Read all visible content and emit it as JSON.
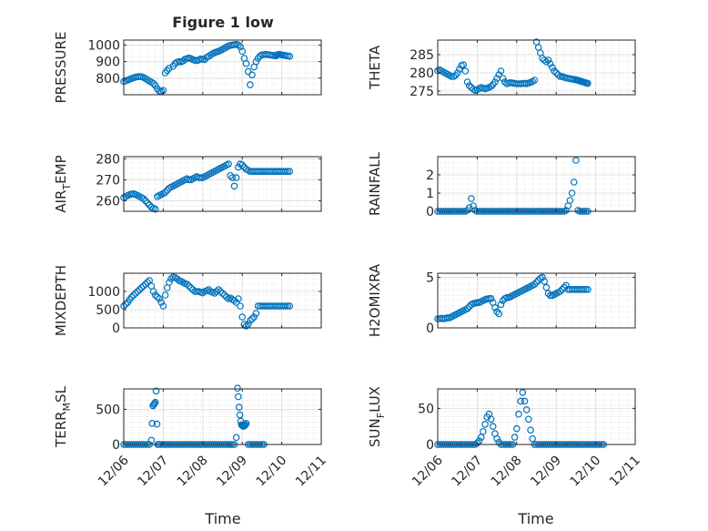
{
  "figure": {
    "title": "Figure 1 low",
    "xlabel": "Time",
    "x_tick_labels": [
      "12/06",
      "12/07",
      "12/08",
      "12/09",
      "12/10",
      "12/11"
    ],
    "x_ticks": [
      0,
      1,
      2,
      3,
      4,
      5
    ],
    "marker_color": "#0072BD",
    "grid": true,
    "minor_grid": true
  },
  "chart_data": [
    {
      "type": "scatter",
      "ylabel": "PRESSURE",
      "xlim": [
        0,
        5
      ],
      "ylim": [
        700,
        1030
      ],
      "yticks": [
        800,
        900,
        1000
      ],
      "x": [
        0,
        0.05,
        0.1,
        0.15,
        0.2,
        0.25,
        0.3,
        0.35,
        0.4,
        0.45,
        0.5,
        0.55,
        0.6,
        0.65,
        0.7,
        0.75,
        0.8,
        0.85,
        0.9,
        0.95,
        1.0,
        1.05,
        1.1,
        1.15,
        1.25,
        1.3,
        1.35,
        1.4,
        1.45,
        1.5,
        1.55,
        1.6,
        1.65,
        1.7,
        1.75,
        1.8,
        1.85,
        1.9,
        1.95,
        2.0,
        2.05,
        2.1,
        2.15,
        2.2,
        2.25,
        2.3,
        2.35,
        2.4,
        2.45,
        2.5,
        2.55,
        2.6,
        2.65,
        2.7,
        2.75,
        2.8,
        2.85,
        2.9,
        2.95,
        3.0,
        3.05,
        3.1,
        3.15,
        3.2,
        3.25,
        3.3,
        3.35,
        3.4,
        3.45,
        3.5,
        3.55,
        3.6,
        3.65,
        3.7,
        3.75,
        3.8,
        3.85,
        3.88,
        3.91,
        3.94,
        3.97,
        4.0,
        4.05,
        4.1,
        4.15,
        4.2
      ],
      "y": [
        780,
        784,
        788,
        793,
        798,
        802,
        806,
        808,
        810,
        808,
        804,
        798,
        790,
        782,
        776,
        768,
        756,
        736,
        722,
        720,
        726,
        832,
        846,
        860,
        872,
        888,
        896,
        900,
        898,
        904,
        914,
        918,
        922,
        918,
        912,
        908,
        906,
        910,
        916,
        914,
        912,
        926,
        932,
        940,
        948,
        954,
        958,
        962,
        968,
        974,
        980,
        988,
        994,
        998,
        1000,
        1002,
        1004,
        1000,
        990,
        962,
        920,
        888,
        840,
        760,
        820,
        868,
        900,
        920,
        934,
        940,
        942,
        944,
        942,
        940,
        938,
        936,
        934,
        940,
        942,
        944,
        942,
        940,
        938,
        936,
        934,
        932
      ]
    },
    {
      "type": "scatter",
      "ylabel": "THETA",
      "xlim": [
        0,
        5
      ],
      "ylim": [
        274,
        289
      ],
      "yticks": [
        275,
        280,
        285
      ],
      "x": [
        0,
        0.05,
        0.1,
        0.15,
        0.2,
        0.25,
        0.3,
        0.35,
        0.4,
        0.45,
        0.5,
        0.55,
        0.6,
        0.65,
        0.7,
        0.75,
        0.8,
        0.85,
        0.9,
        0.95,
        1.0,
        1.05,
        1.1,
        1.15,
        1.2,
        1.25,
        1.3,
        1.35,
        1.4,
        1.45,
        1.5,
        1.55,
        1.6,
        1.65,
        1.7,
        1.75,
        1.8,
        1.85,
        1.9,
        1.95,
        2.0,
        2.05,
        2.1,
        2.15,
        2.2,
        2.25,
        2.3,
        2.35,
        2.4,
        2.45,
        2.5,
        2.55,
        2.6,
        2.65,
        2.7,
        2.75,
        2.8,
        2.85,
        2.9,
        2.95,
        3.0,
        3.05,
        3.1,
        3.15,
        3.2,
        3.25,
        3.3,
        3.35,
        3.4,
        3.45,
        3.5,
        3.53,
        3.56,
        3.59,
        3.62,
        3.65,
        3.68,
        3.71,
        3.74,
        3.77,
        3.8
      ],
      "y": [
        280.6,
        280.8,
        280.5,
        280.2,
        279.9,
        279.6,
        279.3,
        279.0,
        279.0,
        279.3,
        280.0,
        281.0,
        282.0,
        282.2,
        280.5,
        277.5,
        276.5,
        276.0,
        275.5,
        275.2,
        275.4,
        275.7,
        276.0,
        275.8,
        275.6,
        275.8,
        276.0,
        276.3,
        276.8,
        277.5,
        278.5,
        279.5,
        280.5,
        278.5,
        277.5,
        277.0,
        277.2,
        277.3,
        277.2,
        277.1,
        277.0,
        277.0,
        277.0,
        277.1,
        277.1,
        277.0,
        277.2,
        277.4,
        277.6,
        278.0,
        288.5,
        287.0,
        285.5,
        284.0,
        283.5,
        283.0,
        283.5,
        282.5,
        281.5,
        280.5,
        280.0,
        279.5,
        279.0,
        279.0,
        278.8,
        278.6,
        278.5,
        278.4,
        278.3,
        278.2,
        278.1,
        278.0,
        277.9,
        277.8,
        277.7,
        277.6,
        277.5,
        277.4,
        277.3,
        277.2,
        277.1
      ]
    },
    {
      "type": "scatter",
      "ylabel": "AIR_TEMP",
      "xlim": [
        0,
        5
      ],
      "ylim": [
        255,
        281
      ],
      "yticks": [
        260,
        270,
        280
      ],
      "x": [
        0,
        0.05,
        0.1,
        0.15,
        0.2,
        0.25,
        0.3,
        0.35,
        0.4,
        0.45,
        0.5,
        0.55,
        0.6,
        0.65,
        0.7,
        0.75,
        0.8,
        0.85,
        0.9,
        0.95,
        1.0,
        1.05,
        1.1,
        1.15,
        1.2,
        1.25,
        1.3,
        1.35,
        1.4,
        1.45,
        1.5,
        1.55,
        1.6,
        1.65,
        1.7,
        1.75,
        1.8,
        1.85,
        1.9,
        1.95,
        2.0,
        2.05,
        2.1,
        2.15,
        2.2,
        2.25,
        2.3,
        2.35,
        2.4,
        2.45,
        2.5,
        2.55,
        2.6,
        2.65,
        2.7,
        2.75,
        2.8,
        2.85,
        2.9,
        2.95,
        3.0,
        3.05,
        3.1,
        3.15,
        3.2,
        3.25,
        3.3,
        3.35,
        3.4,
        3.45,
        3.5,
        3.55,
        3.6,
        3.65,
        3.7,
        3.75,
        3.8,
        3.85,
        3.9,
        3.95,
        4.0,
        4.05,
        4.1,
        4.15,
        4.2
      ],
      "y": [
        261.5,
        262.0,
        262.5,
        263.0,
        263.2,
        263.3,
        263.0,
        262.5,
        262.0,
        261.5,
        261.0,
        260.0,
        259.0,
        258.0,
        257.0,
        256.5,
        256.0,
        262.0,
        262.5,
        263.0,
        263.5,
        264.0,
        265.0,
        266.0,
        266.5,
        267.0,
        267.5,
        268.0,
        268.5,
        269.0,
        269.5,
        270.0,
        270.5,
        270.0,
        270.0,
        270.5,
        271.0,
        271.5,
        271.0,
        271.0,
        271.0,
        271.5,
        272.0,
        272.5,
        273.0,
        273.5,
        274.0,
        274.5,
        275.0,
        275.5,
        276.0,
        276.5,
        277.0,
        277.5,
        272.0,
        271.0,
        267.0,
        271.0,
        276.0,
        277.5,
        277.0,
        276.0,
        275.0,
        274.5,
        274.0,
        274.0,
        274.0,
        274.0,
        274.0,
        274.0,
        274.0,
        274.0,
        274.0,
        274.0,
        274.0,
        274.0,
        274.0,
        274.0,
        274.0,
        274.0,
        274.0,
        274.0,
        274.0,
        274.0,
        274.0
      ]
    },
    {
      "type": "scatter",
      "ylabel": "RAINFALL",
      "xlim": [
        0,
        5
      ],
      "ylim": [
        0,
        3
      ],
      "yticks": [
        0,
        1,
        2
      ],
      "x": [
        0,
        0.05,
        0.1,
        0.15,
        0.2,
        0.25,
        0.3,
        0.35,
        0.4,
        0.45,
        0.5,
        0.55,
        0.6,
        0.65,
        0.7,
        0.75,
        0.8,
        0.85,
        0.9,
        0.95,
        1.0,
        1.05,
        1.1,
        1.15,
        1.2,
        1.25,
        1.3,
        1.35,
        1.4,
        1.45,
        1.5,
        1.55,
        1.6,
        1.65,
        1.7,
        1.75,
        1.8,
        1.85,
        1.9,
        1.95,
        2.0,
        2.05,
        2.1,
        2.15,
        2.2,
        2.25,
        2.3,
        2.35,
        2.4,
        2.45,
        2.5,
        2.55,
        2.6,
        2.65,
        2.7,
        2.75,
        2.8,
        2.85,
        2.9,
        2.95,
        3.0,
        3.05,
        3.1,
        3.15,
        3.2,
        3.25,
        3.3,
        3.35,
        3.4,
        3.45,
        3.5,
        3.55,
        3.6,
        3.65,
        3.7,
        3.75,
        3.8
      ],
      "y": [
        0,
        0,
        0,
        0,
        0,
        0,
        0,
        0,
        0,
        0,
        0,
        0,
        0,
        0,
        0,
        0.05,
        0.2,
        0.7,
        0.3,
        0.05,
        0,
        0,
        0,
        0,
        0,
        0,
        0,
        0,
        0,
        0,
        0,
        0,
        0,
        0,
        0,
        0,
        0,
        0,
        0,
        0,
        0,
        0,
        0,
        0,
        0,
        0,
        0,
        0,
        0,
        0,
        0,
        0,
        0,
        0,
        0,
        0,
        0,
        0,
        0,
        0,
        0,
        0,
        0,
        0,
        0,
        0.05,
        0.3,
        0.6,
        1.0,
        1.6,
        2.8,
        0.05,
        0,
        0,
        0,
        0,
        0
      ]
    },
    {
      "type": "scatter",
      "ylabel": "MIXDEPTH",
      "xlim": [
        0,
        5
      ],
      "ylim": [
        0,
        1500
      ],
      "yticks": [
        0,
        500,
        1000
      ],
      "x": [
        0,
        0.05,
        0.1,
        0.15,
        0.2,
        0.25,
        0.3,
        0.35,
        0.4,
        0.45,
        0.5,
        0.55,
        0.6,
        0.65,
        0.7,
        0.75,
        0.8,
        0.85,
        0.9,
        0.95,
        1.0,
        1.05,
        1.1,
        1.15,
        1.2,
        1.25,
        1.3,
        1.35,
        1.4,
        1.45,
        1.5,
        1.55,
        1.6,
        1.65,
        1.7,
        1.75,
        1.8,
        1.85,
        1.9,
        1.95,
        2.0,
        2.05,
        2.1,
        2.15,
        2.2,
        2.25,
        2.3,
        2.35,
        2.4,
        2.45,
        2.5,
        2.55,
        2.6,
        2.65,
        2.7,
        2.75,
        2.8,
        2.85,
        2.9,
        2.95,
        3.0,
        3.05,
        3.1,
        3.15,
        3.2,
        3.25,
        3.3,
        3.35,
        3.4,
        3.45,
        3.5,
        3.55,
        3.6,
        3.65,
        3.7,
        3.75,
        3.8,
        3.85,
        3.9,
        3.95,
        4.0,
        4.05,
        4.1,
        4.15,
        4.2
      ],
      "y": [
        600,
        650,
        700,
        780,
        850,
        900,
        950,
        1000,
        1050,
        1100,
        1150,
        1200,
        1250,
        1300,
        1150,
        1000,
        900,
        850,
        800,
        700,
        600,
        900,
        1100,
        1250,
        1350,
        1400,
        1380,
        1350,
        1300,
        1280,
        1250,
        1220,
        1200,
        1150,
        1100,
        1050,
        1000,
        1000,
        1000,
        980,
        960,
        1000,
        1020,
        1050,
        1000,
        980,
        950,
        1000,
        1050,
        1000,
        950,
        900,
        850,
        800,
        820,
        780,
        750,
        700,
        800,
        600,
        300,
        100,
        50,
        100,
        200,
        250,
        300,
        400,
        600,
        600,
        600,
        600,
        600,
        600,
        600,
        600,
        600,
        600,
        600,
        600,
        600,
        600,
        600,
        600,
        600
      ]
    },
    {
      "type": "scatter",
      "ylabel": "H2OMIXRA",
      "xlim": [
        0,
        5
      ],
      "ylim": [
        0,
        5.4
      ],
      "yticks": [
        0,
        5
      ],
      "x": [
        0,
        0.05,
        0.1,
        0.15,
        0.2,
        0.25,
        0.3,
        0.35,
        0.4,
        0.45,
        0.5,
        0.55,
        0.6,
        0.65,
        0.7,
        0.75,
        0.8,
        0.85,
        0.9,
        0.95,
        1.0,
        1.05,
        1.1,
        1.15,
        1.2,
        1.25,
        1.3,
        1.35,
        1.4,
        1.45,
        1.5,
        1.55,
        1.6,
        1.65,
        1.7,
        1.75,
        1.8,
        1.85,
        1.9,
        1.95,
        2.0,
        2.05,
        2.1,
        2.15,
        2.2,
        2.25,
        2.3,
        2.35,
        2.4,
        2.45,
        2.5,
        2.55,
        2.6,
        2.65,
        2.7,
        2.75,
        2.8,
        2.85,
        2.9,
        2.95,
        3.0,
        3.05,
        3.1,
        3.15,
        3.2,
        3.25,
        3.3,
        3.35,
        3.4,
        3.45,
        3.5,
        3.55,
        3.6,
        3.65,
        3.7,
        3.75,
        3.8
      ],
      "y": [
        0.9,
        0.9,
        0.95,
        0.9,
        0.95,
        1.0,
        1.0,
        1.1,
        1.2,
        1.3,
        1.4,
        1.5,
        1.6,
        1.7,
        1.8,
        1.9,
        2.1,
        2.3,
        2.4,
        2.45,
        2.5,
        2.5,
        2.6,
        2.7,
        2.8,
        2.85,
        2.9,
        2.9,
        2.5,
        2.0,
        1.6,
        1.4,
        2.3,
        2.7,
        2.9,
        3.0,
        3.0,
        3.1,
        3.2,
        3.3,
        3.4,
        3.5,
        3.6,
        3.7,
        3.8,
        3.9,
        4.0,
        4.1,
        4.2,
        4.3,
        4.5,
        4.7,
        4.9,
        5.0,
        4.6,
        4.0,
        3.4,
        3.2,
        3.2,
        3.3,
        3.4,
        3.5,
        3.6,
        3.8,
        4.0,
        4.2,
        3.8,
        3.8,
        3.8,
        3.8,
        3.8,
        3.8,
        3.8,
        3.8,
        3.8,
        3.8,
        3.8
      ]
    },
    {
      "type": "scatter",
      "ylabel": "TERR_MSL",
      "xlim": [
        0,
        5
      ],
      "ylim": [
        0,
        790
      ],
      "yticks": [
        0,
        500
      ],
      "x": [
        0,
        0.05,
        0.1,
        0.15,
        0.2,
        0.25,
        0.3,
        0.35,
        0.4,
        0.45,
        0.5,
        0.55,
        0.6,
        0.65,
        0.7,
        0.72,
        0.74,
        0.76,
        0.78,
        0.8,
        0.82,
        0.84,
        0.86,
        0.88,
        0.9,
        0.95,
        1.0,
        1.05,
        1.1,
        1.15,
        1.2,
        1.25,
        1.3,
        1.35,
        1.4,
        1.45,
        1.5,
        1.55,
        1.6,
        1.65,
        1.7,
        1.75,
        1.8,
        1.85,
        1.9,
        1.95,
        2.0,
        2.05,
        2.1,
        2.15,
        2.2,
        2.25,
        2.3,
        2.35,
        2.4,
        2.45,
        2.5,
        2.55,
        2.6,
        2.65,
        2.7,
        2.75,
        2.8,
        2.85,
        2.88,
        2.9,
        2.92,
        2.94,
        2.96,
        2.98,
        3.0,
        3.02,
        3.04,
        3.06,
        3.08,
        3.1,
        3.15,
        3.2,
        3.25,
        3.3,
        3.35,
        3.4,
        3.45,
        3.5,
        3.55
      ],
      "y": [
        0,
        0,
        0,
        0,
        0,
        0,
        0,
        0,
        0,
        0,
        0,
        0,
        0,
        0,
        60,
        300,
        550,
        570,
        580,
        600,
        760,
        290,
        0,
        0,
        0,
        0,
        0,
        0,
        0,
        0,
        0,
        0,
        0,
        0,
        0,
        0,
        0,
        0,
        0,
        0,
        0,
        0,
        0,
        0,
        0,
        0,
        0,
        0,
        0,
        0,
        0,
        0,
        0,
        0,
        0,
        0,
        0,
        0,
        0,
        0,
        0,
        0,
        0,
        100,
        800,
        680,
        530,
        420,
        330,
        280,
        270,
        260,
        260,
        270,
        280,
        300,
        0,
        0,
        0,
        0,
        0,
        0,
        0,
        0,
        0
      ]
    },
    {
      "type": "scatter",
      "ylabel": "SUN_FLUX",
      "xlim": [
        0,
        5
      ],
      "ylim": [
        0,
        77
      ],
      "yticks": [
        0,
        50
      ],
      "x": [
        0,
        0.05,
        0.1,
        0.15,
        0.2,
        0.25,
        0.3,
        0.35,
        0.4,
        0.45,
        0.5,
        0.55,
        0.6,
        0.65,
        0.7,
        0.75,
        0.8,
        0.85,
        0.9,
        0.95,
        1.0,
        1.05,
        1.1,
        1.15,
        1.2,
        1.25,
        1.3,
        1.35,
        1.4,
        1.45,
        1.5,
        1.55,
        1.6,
        1.65,
        1.7,
        1.75,
        1.8,
        1.85,
        1.9,
        1.95,
        2.0,
        2.05,
        2.1,
        2.15,
        2.2,
        2.25,
        2.3,
        2.35,
        2.4,
        2.45,
        2.5,
        2.55,
        2.6,
        2.65,
        2.7,
        2.75,
        2.8,
        2.85,
        2.9,
        2.95,
        3.0,
        3.05,
        3.1,
        3.15,
        3.2,
        3.25,
        3.3,
        3.35,
        3.4,
        3.45,
        3.5,
        3.55,
        3.6,
        3.65,
        3.7,
        3.75,
        3.8,
        3.85,
        3.9,
        3.95,
        4.0,
        4.05,
        4.1,
        4.15,
        4.2
      ],
      "y": [
        0,
        0,
        0,
        0,
        0,
        0,
        0,
        0,
        0,
        0,
        0,
        0,
        0,
        0,
        0,
        0,
        0,
        0,
        0,
        0,
        2,
        5,
        10,
        18,
        28,
        38,
        42,
        35,
        25,
        15,
        8,
        3,
        0,
        0,
        0,
        0,
        0,
        0,
        0,
        10,
        22,
        42,
        60,
        72,
        60,
        48,
        35,
        20,
        8,
        0,
        0,
        0,
        0,
        0,
        0,
        0,
        0,
        0,
        0,
        0,
        0,
        0,
        0,
        0,
        0,
        0,
        0,
        0,
        0,
        0,
        0,
        0,
        0,
        0,
        0,
        0,
        0,
        0,
        0,
        0,
        0,
        0,
        0,
        0,
        0
      ]
    }
  ]
}
